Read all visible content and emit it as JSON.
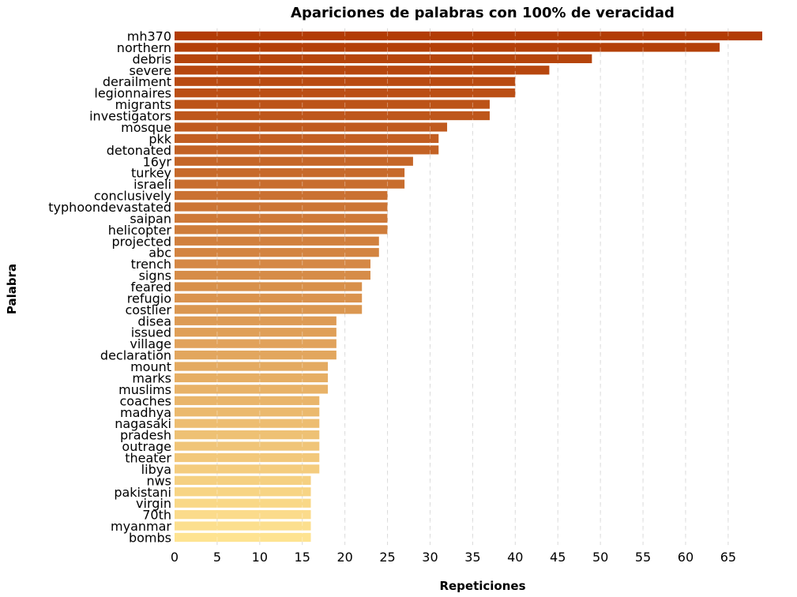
{
  "chart_data": {
    "type": "bar",
    "orientation": "horizontal",
    "title": "Apariciones de palabras con 100% de veracidad",
    "xlabel": "Repeticiones",
    "ylabel": "Palabra",
    "xlim": [
      0,
      69
    ],
    "xticks": [
      0,
      5,
      10,
      15,
      20,
      25,
      30,
      35,
      40,
      45,
      50,
      55,
      60,
      65
    ],
    "grid": "vertical dashed",
    "colormap": "YlOrBr",
    "color_range": [
      "#fee391",
      "#b23c05"
    ],
    "categories": [
      "mh370",
      "northern",
      "debris",
      "severe",
      "derailment",
      "legionnaires",
      "migrants",
      "investigators",
      "mosque",
      "pkk",
      "detonated",
      "16yr",
      "turkey",
      "israeli",
      "conclusively",
      "typhoondevastated",
      "saipan",
      "helicopter",
      "projected",
      "abc",
      "trench",
      "signs",
      "feared",
      "refugio",
      "costlier",
      "disea",
      "issued",
      "village",
      "declaration",
      "mount",
      "marks",
      "muslims",
      "coaches",
      "madhya",
      "nagasaki",
      "pradesh",
      "outrage",
      "theater",
      "libya",
      "nws",
      "pakistani",
      "virgin",
      "70th",
      "myanmar",
      "bombs"
    ],
    "values": [
      69,
      64,
      49,
      44,
      40,
      40,
      37,
      37,
      32,
      31,
      31,
      28,
      27,
      27,
      25,
      25,
      25,
      25,
      24,
      24,
      23,
      23,
      22,
      22,
      22,
      19,
      19,
      19,
      19,
      18,
      18,
      18,
      17,
      17,
      17,
      17,
      17,
      17,
      17,
      16,
      16,
      16,
      16,
      16,
      16
    ]
  }
}
